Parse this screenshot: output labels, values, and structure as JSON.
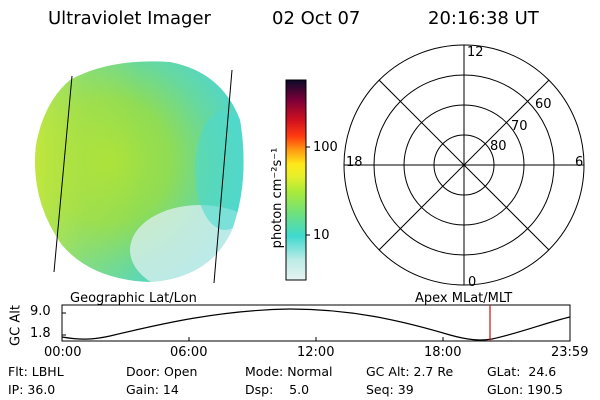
{
  "header": {
    "title": "Ultraviolet Imager",
    "date": "02 Oct 07",
    "time": "20:16:38 UT"
  },
  "colorbar": {
    "unit_label": "photon cm⁻²s⁻¹",
    "tick_100": "100",
    "tick_10": "10",
    "stops": [
      "#e6f4f2",
      "#bdebe6",
      "#3fd9cf",
      "#6ee07f",
      "#a9ea3a",
      "#e7ef2a",
      "#ffe81a",
      "#ff9a12",
      "#ff3a0f",
      "#d01020",
      "#7a0038",
      "#0a0a2a"
    ]
  },
  "polar": {
    "mlt_labels": {
      "top": "12",
      "left": "18",
      "right": "6",
      "bottom": "0"
    },
    "lat_labels": [
      "60",
      "70",
      "80"
    ]
  },
  "altitude_plot": {
    "title_left": "Geographic Lat/Lon",
    "title_right": "Apex MLat/MLT",
    "y_axis_label": "GC Alt",
    "y_ticks": [
      "9.0",
      "1.8"
    ],
    "x_ticks": [
      "00:00",
      "06:00",
      "12:00",
      "18:00",
      "23:59"
    ],
    "marker_color": "#d01010"
  },
  "info": {
    "flt": "Flt: LBHL",
    "ip": "IP: 36.0",
    "door": "Door: Open",
    "gain": "Gain: 14",
    "mode": "Mode: Normal",
    "dsp": "Dsp:    5.0",
    "gc_alt": "GC Alt: 2.7 Re",
    "seq": "Seq: 39",
    "glat": "GLat:  24.6",
    "glon": "GLon: 190.5"
  }
}
